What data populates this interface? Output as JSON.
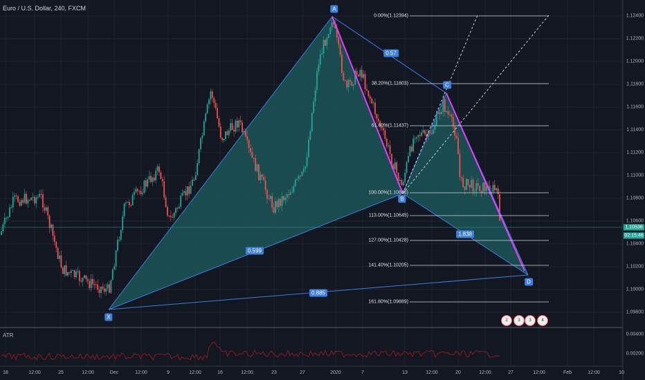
{
  "header": {
    "title": "Euro / U.S. Dollar, 240, FXCM"
  },
  "price_axis": [
    "1.12400",
    "1.12200",
    "1.12000",
    "1.11800",
    "1.11600",
    "1.11400",
    "1.11200",
    "1.11000",
    "1.10800",
    "1.10600",
    "1.10400",
    "1.10200",
    "1.10000",
    "1.09800"
  ],
  "current_price": {
    "value": "1.10536",
    "countdown": "02:15:46"
  },
  "time_axis": [
    "18",
    "12:00",
    "25",
    "12:00",
    "Dec",
    "12:00",
    "9",
    "12:00",
    "16",
    "12:00",
    "23",
    "27",
    "2020",
    "7",
    "13",
    "12:00",
    "20",
    "12:00",
    "27",
    "12:00",
    "Feb",
    "12:00",
    "10"
  ],
  "pattern": {
    "points": [
      "X",
      "A",
      "B",
      "C",
      "D"
    ],
    "ratios": [
      "0.57",
      "0.599",
      "0.885",
      "1.838"
    ]
  },
  "fib_levels": [
    "0.00%(1.12394)",
    "38.20%(1.11803)",
    "61.80%(1.11437)",
    "100.00%(1.10846)",
    "113.00%(1.10645)",
    "127.00%(1.10428)",
    "141.40%(1.10205)",
    "161.80%(1.09889)"
  ],
  "indicator": {
    "name": "ATR",
    "axis": [
      "0.00400",
      "0.00200"
    ]
  },
  "events": [
    "2",
    "3",
    "3",
    "4"
  ],
  "colors": {
    "bg": "#131722",
    "up": "#26a69a",
    "down": "#ef5350",
    "pattern_fill": "#1e5e5e",
    "pattern_line": "#3d7fe0",
    "leg": "#e040fb",
    "atr": "#8b1a1a"
  }
}
